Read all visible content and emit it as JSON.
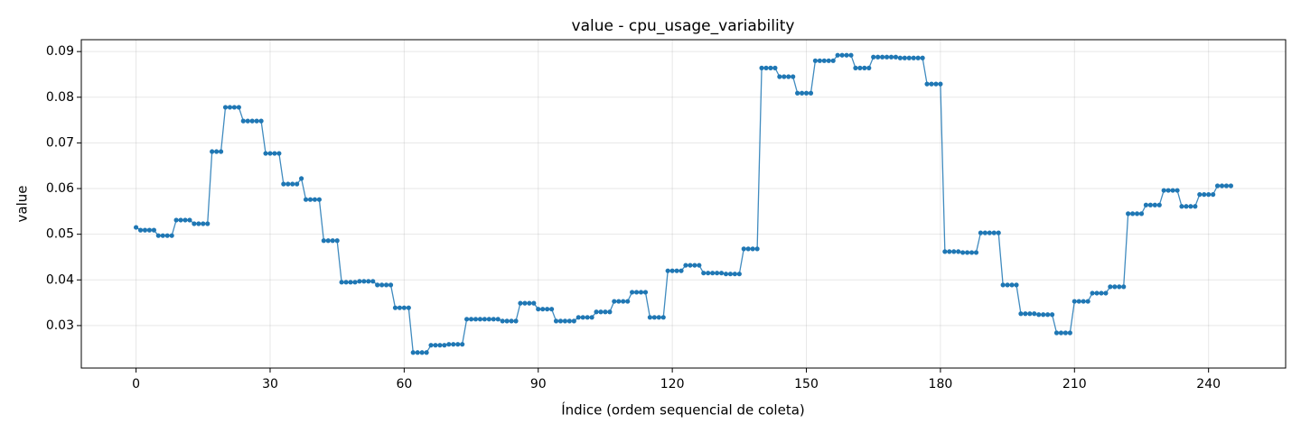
{
  "chart_data": {
    "type": "line",
    "title": "value - cpu_usage_variability",
    "xlabel": "Índice (ordem sequencial de coleta)",
    "ylabel": "value",
    "x": [
      0,
      1,
      2,
      3,
      4,
      5,
      6,
      7,
      8,
      9,
      10,
      11,
      12,
      13,
      14,
      15,
      16,
      17,
      18,
      19,
      20,
      21,
      22,
      23,
      24,
      25,
      26,
      27,
      28,
      29,
      30,
      31,
      32,
      33,
      34,
      35,
      36,
      37,
      38,
      39,
      40,
      41,
      42,
      43,
      44,
      45,
      46,
      47,
      48,
      49,
      50,
      51,
      52,
      53,
      54,
      55,
      56,
      57,
      58,
      59,
      60,
      61,
      62,
      63,
      64,
      65,
      66,
      67,
      68,
      69,
      70,
      71,
      72,
      73,
      74,
      75,
      76,
      77,
      78,
      79,
      80,
      81,
      82,
      83,
      84,
      85,
      86,
      87,
      88,
      89,
      90,
      91,
      92,
      93,
      94,
      95,
      96,
      97,
      98,
      99,
      100,
      101,
      102,
      103,
      104,
      105,
      106,
      107,
      108,
      109,
      110,
      111,
      112,
      113,
      114,
      115,
      116,
      117,
      118,
      119,
      120,
      121,
      122,
      123,
      124,
      125,
      126,
      127,
      128,
      129,
      130,
      131,
      132,
      133,
      134,
      135,
      136,
      137,
      138,
      139,
      140,
      141,
      142,
      143,
      144,
      145,
      146,
      147,
      148,
      149,
      150,
      151,
      152,
      153,
      154,
      155,
      156,
      157,
      158,
      159,
      160,
      161,
      162,
      163,
      164,
      165,
      166,
      167,
      168,
      169,
      170,
      171,
      172,
      173,
      174,
      175,
      176,
      177,
      178,
      179,
      180,
      181,
      182,
      183,
      184,
      185,
      186,
      187,
      188,
      189,
      190,
      191,
      192,
      193,
      194,
      195,
      196,
      197,
      198,
      199,
      200,
      201,
      202,
      203,
      204,
      205,
      206,
      207,
      208,
      209,
      210,
      211,
      212,
      213,
      214,
      215,
      216,
      217,
      218,
      219,
      220,
      221,
      222,
      223,
      224,
      225,
      226,
      227,
      228,
      229,
      230,
      231,
      232,
      233,
      234,
      235,
      236,
      237,
      238,
      239,
      240,
      241,
      242,
      243,
      244,
      245
    ],
    "series": [
      {
        "name": "value",
        "color": "#1f77b4",
        "values": [
          0.0515,
          0.0509,
          0.0509,
          0.0509,
          0.0509,
          0.0497,
          0.0497,
          0.0497,
          0.0497,
          0.0531,
          0.0531,
          0.0531,
          0.0531,
          0.0523,
          0.0523,
          0.0523,
          0.0523,
          0.0681,
          0.0681,
          0.0681,
          0.0778,
          0.0778,
          0.0778,
          0.0778,
          0.0748,
          0.0748,
          0.0748,
          0.0748,
          0.0748,
          0.0677,
          0.0677,
          0.0677,
          0.0677,
          0.061,
          0.061,
          0.061,
          0.061,
          0.0622,
          0.0576,
          0.0576,
          0.0576,
          0.0576,
          0.0486,
          0.0486,
          0.0486,
          0.0486,
          0.0395,
          0.0395,
          0.0395,
          0.0395,
          0.0397,
          0.0397,
          0.0397,
          0.0397,
          0.0389,
          0.0389,
          0.0389,
          0.0389,
          0.0339,
          0.0339,
          0.0339,
          0.0339,
          0.0241,
          0.0241,
          0.0241,
          0.0241,
          0.0257,
          0.0257,
          0.0257,
          0.0257,
          0.0259,
          0.0259,
          0.0259,
          0.0259,
          0.0314,
          0.0314,
          0.0314,
          0.0314,
          0.0314,
          0.0314,
          0.0314,
          0.0314,
          0.031,
          0.031,
          0.031,
          0.031,
          0.0349,
          0.0349,
          0.0349,
          0.0349,
          0.0336,
          0.0336,
          0.0336,
          0.0336,
          0.031,
          0.031,
          0.031,
          0.031,
          0.031,
          0.0318,
          0.0318,
          0.0318,
          0.0318,
          0.033,
          0.033,
          0.033,
          0.033,
          0.0353,
          0.0353,
          0.0353,
          0.0353,
          0.0373,
          0.0373,
          0.0373,
          0.0373,
          0.0318,
          0.0318,
          0.0318,
          0.0318,
          0.042,
          0.042,
          0.042,
          0.042,
          0.0432,
          0.0432,
          0.0432,
          0.0432,
          0.0415,
          0.0415,
          0.0415,
          0.0415,
          0.0415,
          0.0413,
          0.0413,
          0.0413,
          0.0413,
          0.0468,
          0.0468,
          0.0468,
          0.0468,
          0.0864,
          0.0864,
          0.0864,
          0.0864,
          0.0845,
          0.0845,
          0.0845,
          0.0845,
          0.0809,
          0.0809,
          0.0809,
          0.0809,
          0.088,
          0.088,
          0.088,
          0.088,
          0.088,
          0.0892,
          0.0892,
          0.0892,
          0.0892,
          0.0864,
          0.0864,
          0.0864,
          0.0864,
          0.0888,
          0.0888,
          0.0888,
          0.0888,
          0.0888,
          0.0888,
          0.0886,
          0.0886,
          0.0886,
          0.0886,
          0.0886,
          0.0886,
          0.0829,
          0.0829,
          0.0829,
          0.0829,
          0.0462,
          0.0462,
          0.0462,
          0.0462,
          0.046,
          0.046,
          0.046,
          0.046,
          0.0503,
          0.0503,
          0.0503,
          0.0503,
          0.0503,
          0.0389,
          0.0389,
          0.0389,
          0.0389,
          0.0326,
          0.0326,
          0.0326,
          0.0326,
          0.0324,
          0.0324,
          0.0324,
          0.0324,
          0.0284,
          0.0284,
          0.0284,
          0.0284,
          0.0353,
          0.0353,
          0.0353,
          0.0353,
          0.0371,
          0.0371,
          0.0371,
          0.0371,
          0.0385,
          0.0385,
          0.0385,
          0.0385,
          0.0545,
          0.0545,
          0.0545,
          0.0545,
          0.0564,
          0.0564,
          0.0564,
          0.0564,
          0.0596,
          0.0596,
          0.0596,
          0.0596,
          0.0561,
          0.0561,
          0.0561,
          0.0561,
          0.0587,
          0.0587,
          0.0587,
          0.0587,
          0.0606,
          0.0606,
          0.0606,
          0.0606
        ]
      }
    ],
    "xlim": [
      -12.25,
      257.25
    ],
    "xticks": [
      0,
      30,
      60,
      90,
      120,
      150,
      180,
      210,
      240
    ],
    "ylim": [
      0.0207,
      0.0926
    ],
    "yticks": [
      0.03,
      0.04,
      0.05,
      0.06,
      0.07,
      0.08,
      0.09
    ],
    "grid": true,
    "markers": true
  }
}
